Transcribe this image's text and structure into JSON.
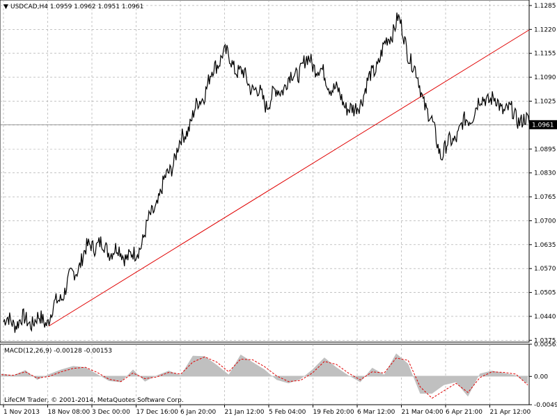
{
  "main_panel": {
    "header": "USDCAD,H4  1.0959 1.0962 1.0951 1.0961",
    "symbol": "USDCAD",
    "timeframe": "H4",
    "ohlc": [
      1.0959,
      1.0962,
      1.0951,
      1.0961
    ]
  },
  "macd_panel": {
    "header": "MACD(12,26,9) -0.00128 -0.00153",
    "main_value": -0.00128,
    "signal_value": -0.00153,
    "footer": "LifeCM Trader, © 2001-2014, MetaQuotes Software Corp."
  },
  "chart_data": [
    {
      "type": "line",
      "series": [
        {
          "name": "USDCAD,H4",
          "x": [
            "1 Nov 2013",
            "18 Nov 08:00",
            "3 Dec 00:00",
            "17 Dec 16:00",
            "6 Jan 20:00",
            "21 Jan 12:00",
            "5 Feb 04:00",
            "19 Feb 20:00",
            "6 Mar 12:00",
            "21 Mar 04:00",
            "6 Apr 21:00",
            "21 Apr 12:00",
            "last"
          ],
          "values": [
            1.0425,
            1.043,
            1.064,
            1.06,
            1.09,
            1.116,
            1.102,
            1.114,
            1.099,
            1.125,
            1.088,
            1.104,
            1.0961
          ]
        }
      ],
      "y_ticks": [
        1.1285,
        1.122,
        1.1155,
        1.109,
        1.1025,
        1.096,
        1.0895,
        1.083,
        1.0765,
        1.07,
        1.0635,
        1.057,
        1.0505,
        1.044,
        1.0375
      ],
      "ylim": [
        1.037,
        1.13
      ],
      "current_price": "1.0961",
      "trendline": {
        "from": [
          "18 Nov 08:00",
          1.042
        ],
        "to": [
          "last",
          1.123
        ],
        "color": "#e00000"
      },
      "grid": true,
      "colors": {
        "price": "#000000",
        "grid": "#a0a0a0",
        "trendline": "#e00000"
      }
    },
    {
      "type": "area",
      "series": [
        {
          "name": "MACD",
          "values": [
            0.0005,
            0.0002,
            0.0011,
            -0.0006,
            0.0004,
            0.0012,
            0.0018,
            0.0016,
            0.0004,
            -0.0008,
            -0.001,
            0.0012,
            -0.0009,
            0.0002,
            0.001,
            0.0002,
            0.0036,
            0.0035,
            0.002,
            0.0003,
            0.0038,
            0.0025,
            0.0012,
            -0.0006,
            -0.0012,
            -0.0005,
            0.0012,
            0.0033,
            0.0016,
            0.0002,
            -0.001,
            0.0015,
            0.0003,
            0.004,
            0.0022,
            -0.003,
            -0.003,
            -0.0015,
            -0.001,
            -0.0035,
            0.0005,
            0.001,
            0.0006,
            0.0002,
            -0.0013
          ]
        },
        {
          "name": "Signal",
          "values": [
            0.0003,
            0.0002,
            0.0008,
            -0.0003,
            0.0,
            0.0008,
            0.0014,
            0.0016,
            0.0007,
            -0.0005,
            -0.0009,
            0.0006,
            -0.0004,
            -0.0001,
            0.0007,
            0.0004,
            0.0025,
            0.0034,
            0.0025,
            0.0008,
            0.003,
            0.0029,
            0.0017,
            0.0001,
            -0.0009,
            -0.0007,
            0.0006,
            0.0026,
            0.0021,
            0.0006,
            -0.0006,
            0.0008,
            0.0006,
            0.0032,
            0.0028,
            -0.0018,
            -0.0038,
            -0.0025,
            -0.0012,
            -0.0028,
            -0.0002,
            0.0008,
            0.0007,
            0.0004,
            -0.0015
          ]
        }
      ],
      "y_ticks": [
        "0.00561",
        "0.00",
        "-0.00493"
      ],
      "ylim": [
        -0.00493,
        0.00561
      ],
      "colors": {
        "histogram": "#c0c0c0",
        "signal": "#e00000"
      }
    }
  ],
  "x_axis_labels": [
    "1 Nov 2013",
    "18 Nov 08:00",
    "3 Dec 00:00",
    "17 Dec 16:00",
    "6 Jan 20:00",
    "21 Jan 12:00",
    "5 Feb 04:00",
    "19 Feb 20:00",
    "6 Mar 12:00",
    "21 Mar 04:00",
    "6 Apr 21:00",
    "21 Apr 12:00"
  ]
}
